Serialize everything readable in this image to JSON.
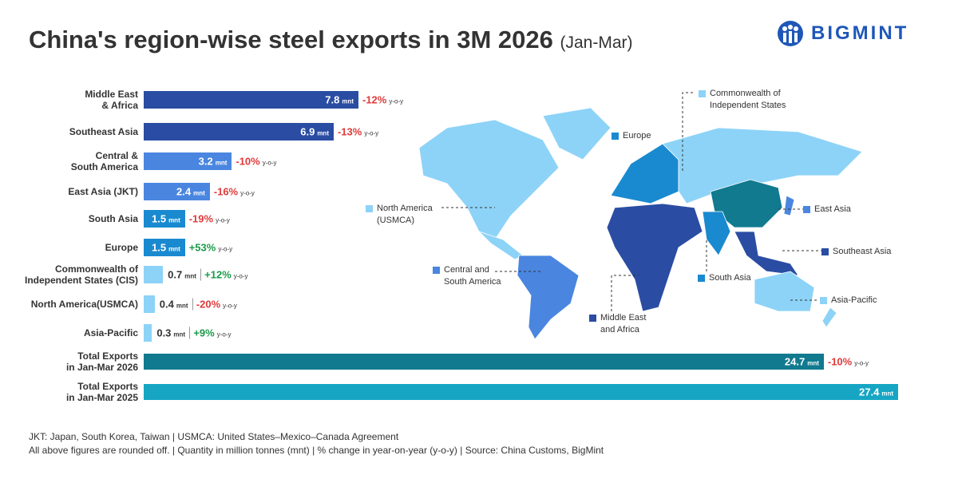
{
  "header": {
    "title": "China's region-wise steel exports in 3M 2026",
    "title_note": "(Jan-Mar)",
    "logo": "BIGMINT"
  },
  "chart_data": {
    "type": "bar",
    "orientation": "horizontal",
    "categories": [
      "Middle East\n& Africa",
      "Southeast Asia",
      "Central &\nSouth America",
      "East Asia (JKT)",
      "South Asia",
      "Europe",
      "Commonwealth of\nIndependent States (CIS)",
      "North America(USMCA)",
      "Asia-Pacific",
      "Total Exports\nin Jan-Mar 2026",
      "Total Exports\nin Jan-Mar 2025"
    ],
    "values": [
      7.8,
      6.9,
      3.2,
      2.4,
      1.5,
      1.5,
      0.7,
      0.4,
      0.3,
      24.7,
      27.4
    ],
    "unit": "mnt",
    "colors": [
      "#2a4da3",
      "#2a4da3",
      "#4a86e0",
      "#4a86e0",
      "#1a8ad0",
      "#1a8ad0",
      "#8dd3f7",
      "#8dd3f7",
      "#8dd3f7",
      "#117a8f",
      "#16a6c4"
    ],
    "yoy": {
      "values": [
        -12,
        -13,
        -10,
        -16,
        -19,
        53,
        12,
        -20,
        9,
        -10,
        null
      ],
      "value_labels": [
        "-12%",
        "-13%",
        "-10%",
        "-16%",
        "-19%",
        "+53%",
        "+12%",
        "-20%",
        "+9%",
        "-10%",
        null
      ],
      "unit": "y-o-y"
    }
  },
  "map": {
    "labels": [
      {
        "text": "Commonwealth of\nIndependent States",
        "color": "#8dd3f7"
      },
      {
        "text": "Europe",
        "color": "#1a8ad0"
      },
      {
        "text": "North America\n(USMCA)",
        "color": "#8dd3f7"
      },
      {
        "text": "East Asia",
        "color": "#4a86e0"
      },
      {
        "text": "Southeast Asia",
        "color": "#2a4da3"
      },
      {
        "text": "Central and\nSouth America",
        "color": "#4a86e0"
      },
      {
        "text": "South Asia",
        "color": "#1a8ad0"
      },
      {
        "text": "Asia-Pacific",
        "color": "#8dd3f7"
      },
      {
        "text": "Middle East\nand Africa",
        "color": "#2a4da3"
      }
    ]
  },
  "footnotes": [
    "JKT: Japan, South Korea, Taiwan | USMCA: United States–Mexico–Canada Agreement",
    "All above figures are rounded off. | Quantity in million tonnes (mnt) | % change in year-on-year (y-o-y) | Source: China Customs, BigMint"
  ]
}
